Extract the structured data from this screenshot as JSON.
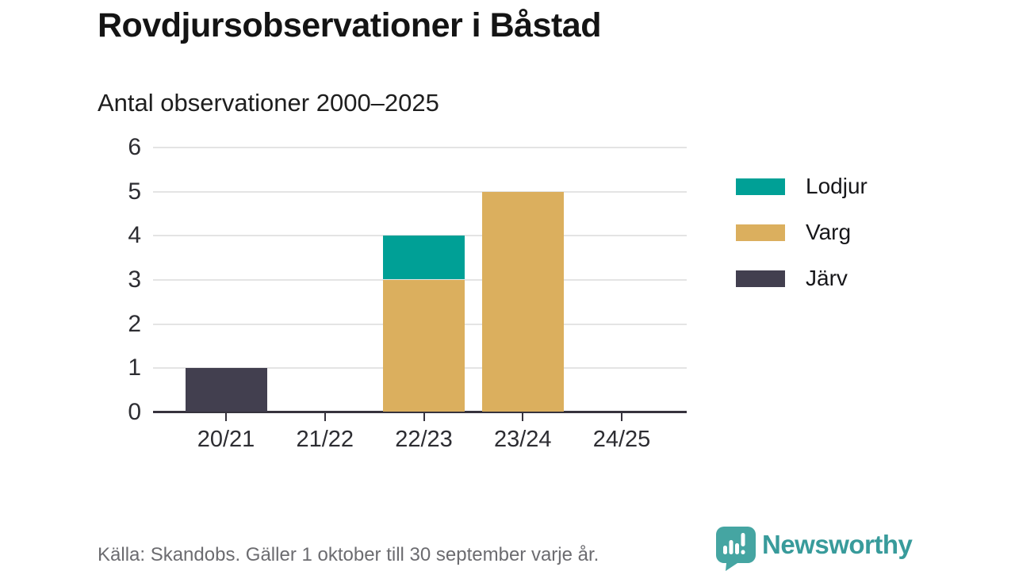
{
  "title": "Rovdjursobservationer i Båstad",
  "subtitle": "Antal observationer 2000–2025",
  "footer": {
    "source_note": "Källa: Skandobs. Gäller 1 oktober till 30 september varje år."
  },
  "branding": {
    "wordmark": "Newsworthy",
    "icon": "speech-bubble-bar-chart-icon",
    "icon_color": "#45a5a2",
    "wordmark_color": "#389b9b"
  },
  "chart_data": {
    "type": "bar",
    "stacked": true,
    "title": "Rovdjursobservationer i Båstad",
    "subtitle": "Antal observationer 2000–2025",
    "categories": [
      "20/21",
      "21/22",
      "22/23",
      "23/24",
      "24/25"
    ],
    "series": [
      {
        "name": "Lodjur",
        "color": "#00a096",
        "values": [
          0,
          0,
          1,
          0,
          0
        ]
      },
      {
        "name": "Varg",
        "color": "#dbaf5e",
        "values": [
          0,
          0,
          3,
          5,
          0
        ]
      },
      {
        "name": "Järv",
        "color": "#423f4f",
        "values": [
          1,
          0,
          0,
          0,
          0
        ]
      }
    ],
    "stack_order_bottom_to_top": [
      "Järv",
      "Varg",
      "Lodjur"
    ],
    "xlabel": "",
    "ylabel": "",
    "ylim": [
      0,
      6
    ],
    "yticks": [
      0,
      1,
      2,
      3,
      4,
      5,
      6
    ],
    "grid": true,
    "legend_position": "right",
    "axis_color": "#36333d",
    "gridline_color": "#e4e4e4"
  }
}
